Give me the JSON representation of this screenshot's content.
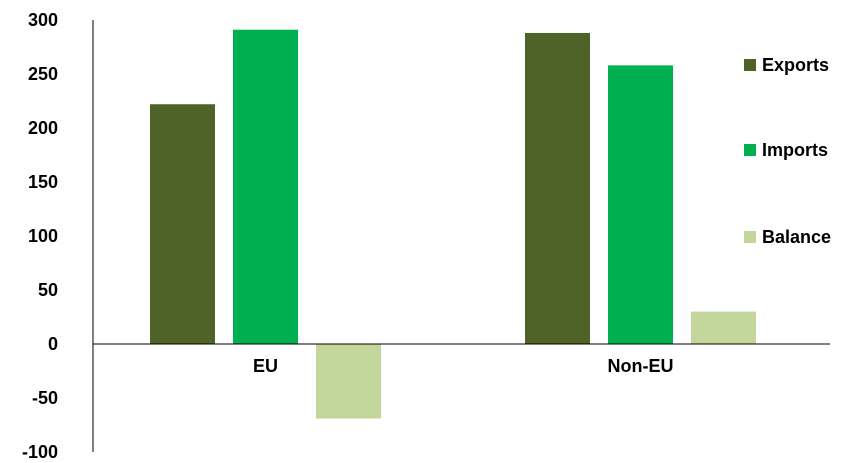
{
  "chart_data": {
    "type": "bar",
    "categories": [
      "EU",
      "Non-EU"
    ],
    "series": [
      {
        "name": "Exports",
        "values": [
          222,
          288
        ],
        "color": "#4f6228"
      },
      {
        "name": "Imports",
        "values": [
          291,
          258
        ],
        "color": "#00b050"
      },
      {
        "name": "Balance",
        "values": [
          -69,
          30
        ],
        "color": "#c3d69b"
      }
    ],
    "title": "",
    "xlabel": "",
    "ylabel": "",
    "ylim": [
      -100,
      300
    ],
    "yticks": [
      -100,
      -50,
      0,
      50,
      100,
      150,
      200,
      250,
      300
    ],
    "grid": false,
    "legend_position": "right"
  }
}
